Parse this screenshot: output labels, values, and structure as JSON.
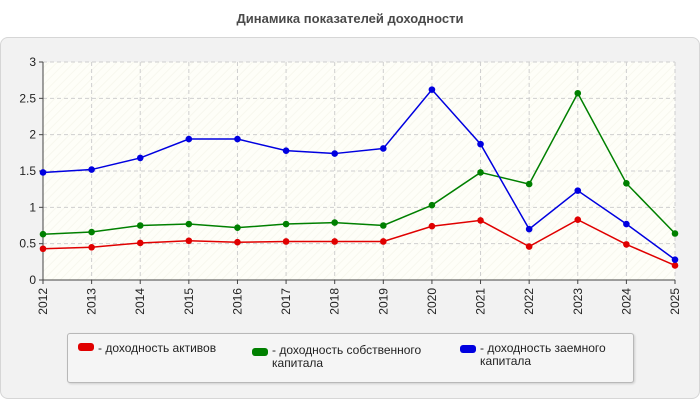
{
  "title": "Динамика показателей доходности",
  "chart_data": {
    "type": "line",
    "title": "Динамика показателей доходности",
    "x": [
      "2012",
      "2013",
      "2014",
      "2015",
      "2016",
      "2017",
      "2018",
      "2019",
      "2020",
      "2021",
      "2022",
      "2023",
      "2024",
      "2025"
    ],
    "ylim": [
      0,
      3
    ],
    "yticks": [
      "0",
      "0.5",
      "1",
      "1.5",
      "2",
      "2.5",
      "3"
    ],
    "grid": true,
    "legend_position": "bottom",
    "series": [
      {
        "name": "- доходность активов",
        "color": "#e00000",
        "values": [
          0.43,
          0.45,
          0.51,
          0.54,
          0.52,
          0.53,
          0.53,
          0.53,
          0.74,
          0.82,
          0.46,
          0.83,
          0.49,
          0.2
        ]
      },
      {
        "name": "- доходность собственного капитала",
        "color": "#008000",
        "values": [
          0.63,
          0.66,
          0.75,
          0.77,
          0.72,
          0.77,
          0.79,
          0.75,
          1.03,
          1.48,
          1.32,
          2.57,
          1.33,
          0.64
        ]
      },
      {
        "name": "- доходность заемного капитала",
        "color": "#0000e0",
        "values": [
          1.48,
          1.52,
          1.68,
          1.94,
          1.94,
          1.78,
          1.74,
          1.81,
          2.62,
          1.87,
          0.7,
          1.23,
          0.77,
          0.28
        ]
      }
    ]
  }
}
